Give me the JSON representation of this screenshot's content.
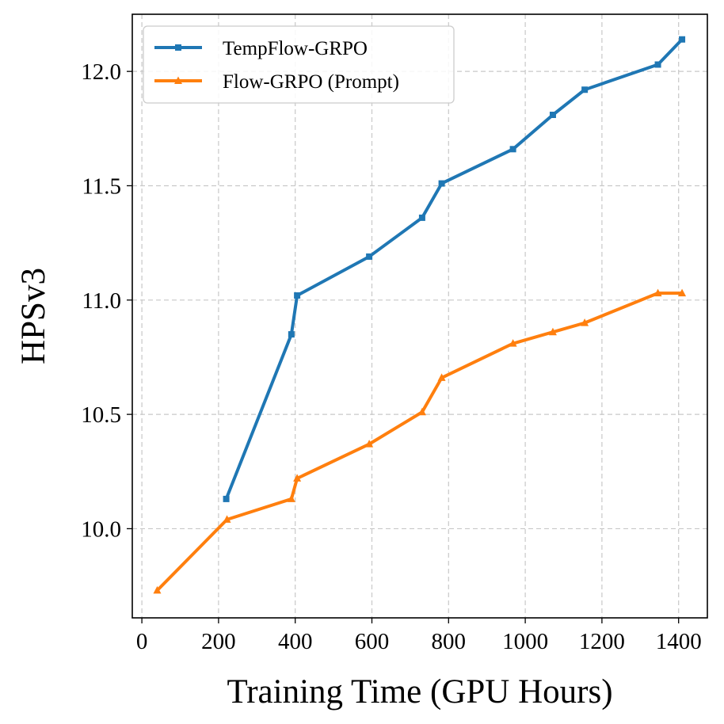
{
  "chart_data": {
    "type": "line",
    "title": "",
    "xlabel": "Training Time (GPU Hours)",
    "ylabel": "HPSv3",
    "xlim": [
      -25,
      1475
    ],
    "ylim": [
      9.61,
      12.25
    ],
    "xticks": [
      0,
      200,
      400,
      600,
      800,
      1000,
      1200,
      1400
    ],
    "xtick_labels": [
      "0",
      "200",
      "400",
      "600",
      "800",
      "1000",
      "1200",
      "1400"
    ],
    "yticks": [
      10.0,
      10.5,
      11.0,
      11.5,
      12.0
    ],
    "ytick_labels": [
      "10.0",
      "10.5",
      "11.0",
      "11.5",
      "12.0"
    ],
    "grid": true,
    "legend_position": "top-left",
    "series": [
      {
        "name": "TempFlow-GRPO",
        "color": "#1f77b4",
        "marker": "square",
        "x": [
          220,
          390,
          405,
          593,
          731,
          782,
          968,
          1072,
          1155,
          1346,
          1409
        ],
        "y": [
          10.13,
          10.85,
          11.02,
          11.19,
          11.36,
          11.51,
          11.66,
          11.81,
          11.92,
          12.03,
          12.14
        ]
      },
      {
        "name": "Flow-GRPO (Prompt)",
        "color": "#ff7f0e",
        "marker": "triangle",
        "x": [
          40,
          222,
          390,
          405,
          593,
          731,
          782,
          968,
          1072,
          1155,
          1346,
          1409
        ],
        "y": [
          9.73,
          10.04,
          10.13,
          10.22,
          10.37,
          10.51,
          10.66,
          10.81,
          10.86,
          10.9,
          11.03,
          11.03
        ]
      }
    ]
  }
}
